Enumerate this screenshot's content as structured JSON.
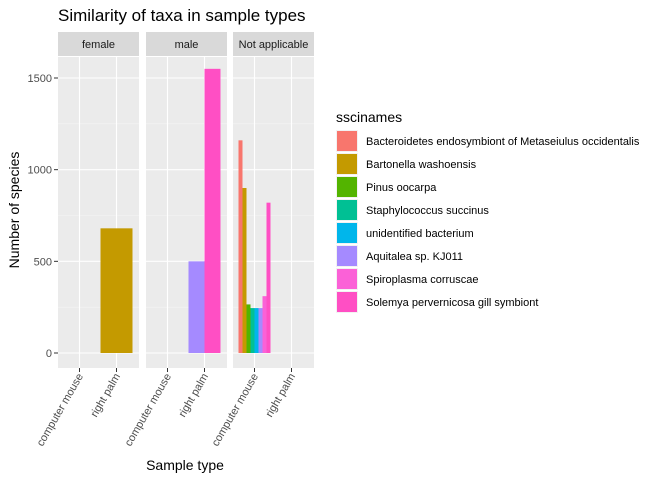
{
  "chart_data": {
    "type": "bar",
    "title": "Similarity of taxa in sample types",
    "xlabel": "Sample type",
    "ylabel": "Number of species",
    "ylim": [
      0,
      1630
    ],
    "yticks": [
      0,
      500,
      1000,
      1500
    ],
    "grid": true,
    "legend_position": "right",
    "legend_title": "sscinames",
    "categories": [
      "computer mouse",
      "right palm"
    ],
    "facets": [
      "female",
      "male",
      "Not applicable"
    ],
    "series": [
      {
        "name": "Bacteroidetes endosymbiont of Metaseiulus occidentalis",
        "color": "#F8766D"
      },
      {
        "name": "Bartonella washoensis",
        "color": "#C49A00"
      },
      {
        "name": "Pinus oocarpa",
        "color": "#53B400"
      },
      {
        "name": "Staphylococcus succinus",
        "color": "#00C094"
      },
      {
        "name": "unidentified bacterium",
        "color": "#00B6EB"
      },
      {
        "name": "Aquitalea sp. KJ011",
        "color": "#A58AFF"
      },
      {
        "name": "Spiroplasma corruscae",
        "color": "#FB61D7"
      },
      {
        "name": "Solemya pervernicosa gill symbiont",
        "color": "#FF4FC4"
      }
    ],
    "bars": [
      {
        "facet": "female",
        "category": "right palm",
        "series": "Bartonella washoensis",
        "value": 680
      },
      {
        "facet": "male",
        "category": "right palm",
        "series": "Aquitalea sp. KJ011",
        "value": 500
      },
      {
        "facet": "male",
        "category": "right palm",
        "series": "Solemya pervernicosa gill symbiont",
        "value": 1550
      },
      {
        "facet": "Not applicable",
        "category": "computer mouse",
        "series": "Bacteroidetes endosymbiont of Metaseiulus occidentalis",
        "value": 1160
      },
      {
        "facet": "Not applicable",
        "category": "computer mouse",
        "series": "Bartonella washoensis",
        "value": 900
      },
      {
        "facet": "Not applicable",
        "category": "computer mouse",
        "series": "Pinus oocarpa",
        "value": 265
      },
      {
        "facet": "Not applicable",
        "category": "computer mouse",
        "series": "Staphylococcus succinus",
        "value": 245
      },
      {
        "facet": "Not applicable",
        "category": "computer mouse",
        "series": "unidentified bacterium",
        "value": 245
      },
      {
        "facet": "Not applicable",
        "category": "computer mouse",
        "series": "Aquitalea sp. KJ011",
        "value": 245
      },
      {
        "facet": "Not applicable",
        "category": "computer mouse",
        "series": "Spiroplasma corruscae",
        "value": 310
      },
      {
        "facet": "Not applicable",
        "category": "computer mouse",
        "series": "Solemya pervernicosa gill symbiont",
        "value": 820
      }
    ]
  }
}
